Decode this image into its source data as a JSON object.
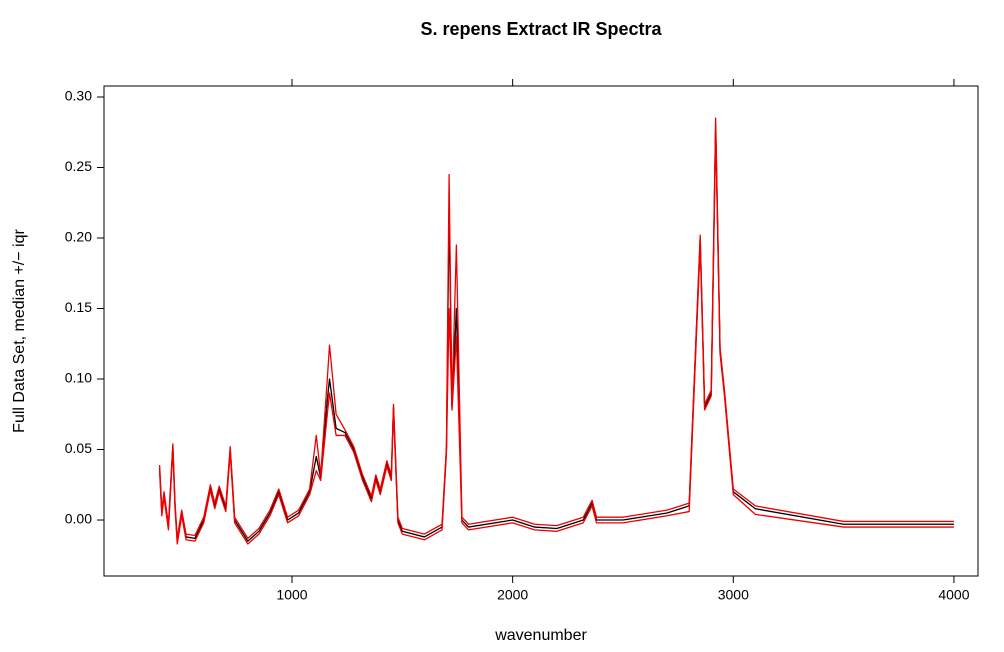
{
  "chart_data": {
    "type": "line",
    "title": "S. repens Extract IR Spectra",
    "xlabel": "wavenumber",
    "ylabel": "Full Data Set, median +/− iqr",
    "xlim": [
      148,
      4109
    ],
    "ylim": [
      -0.0397,
      0.3078
    ],
    "xticks": [
      1000,
      2000,
      3000,
      4000
    ],
    "yticks": [
      {
        "value": 0,
        "label": "0.00"
      },
      {
        "value": 0.05,
        "label": "0.05"
      },
      {
        "value": 0.1,
        "label": "0.10"
      },
      0.15,
      {
        "value": 0.2,
        "label": "0.20"
      },
      0.25,
      {
        "value": 0.3,
        "label": "0.30"
      }
    ],
    "x": [
      400,
      410,
      420,
      440,
      460,
      470,
      480,
      500,
      520,
      560,
      600,
      630,
      650,
      670,
      700,
      720,
      740,
      800,
      850,
      900,
      940,
      980,
      1030,
      1080,
      1110,
      1130,
      1160,
      1170,
      1200,
      1240,
      1280,
      1320,
      1360,
      1380,
      1400,
      1430,
      1450,
      1460,
      1480,
      1500,
      1600,
      1680,
      1700,
      1712,
      1725,
      1745,
      1770,
      1800,
      2000,
      2100,
      2200,
      2320,
      2360,
      2380,
      2500,
      2700,
      2800,
      2850,
      2870,
      2900,
      2920,
      2940,
      2960,
      3000,
      3100,
      3500,
      4000
    ],
    "series": [
      {
        "color": "#000000",
        "values": [
          0.037,
          0.005,
          0.018,
          -0.005,
          0.052,
          0.01,
          -0.015,
          0.005,
          -0.012,
          -0.013,
          0.0,
          0.023,
          0.01,
          0.022,
          0.008,
          0.05,
          0.0,
          -0.015,
          -0.008,
          0.005,
          0.02,
          0.0,
          0.005,
          0.02,
          0.045,
          0.03,
          0.085,
          0.1,
          0.065,
          0.062,
          0.05,
          0.03,
          0.015,
          0.03,
          0.02,
          0.04,
          0.03,
          0.08,
          0.0,
          -0.008,
          -0.012,
          -0.005,
          0.05,
          0.22,
          0.08,
          0.15,
          0.0,
          -0.005,
          0.0,
          -0.005,
          -0.006,
          0.0,
          0.012,
          0.0,
          0.0,
          0.005,
          0.01,
          0.2,
          0.08,
          0.09,
          0.28,
          0.12,
          0.09,
          0.02,
          0.008,
          -0.003,
          -0.003
        ]
      },
      {
        "color": "#ee0000",
        "values": [
          0.039,
          0.007,
          0.02,
          -0.003,
          0.054,
          0.012,
          -0.013,
          0.007,
          -0.01,
          -0.011,
          0.002,
          0.025,
          0.012,
          0.024,
          0.01,
          0.052,
          0.002,
          -0.013,
          -0.006,
          0.007,
          0.022,
          0.002,
          0.007,
          0.022,
          0.06,
          0.032,
          0.1,
          0.124,
          0.075,
          0.064,
          0.052,
          0.032,
          0.017,
          0.032,
          0.022,
          0.042,
          0.032,
          0.082,
          0.002,
          -0.006,
          -0.01,
          -0.003,
          0.052,
          0.245,
          0.082,
          0.195,
          0.002,
          -0.003,
          0.002,
          -0.003,
          -0.004,
          0.002,
          0.014,
          0.002,
          0.002,
          0.007,
          0.012,
          0.202,
          0.082,
          0.092,
          0.285,
          0.122,
          0.092,
          0.022,
          0.01,
          -0.001,
          -0.001
        ]
      },
      {
        "color": "#ee0000",
        "values": [
          0.035,
          0.003,
          0.016,
          -0.007,
          0.05,
          0.008,
          -0.017,
          0.003,
          -0.014,
          -0.015,
          -0.002,
          0.021,
          0.008,
          0.02,
          0.006,
          0.048,
          -0.002,
          -0.017,
          -0.01,
          0.003,
          0.018,
          -0.002,
          0.003,
          0.018,
          0.035,
          0.028,
          0.075,
          0.09,
          0.06,
          0.06,
          0.048,
          0.028,
          0.013,
          0.028,
          0.018,
          0.038,
          0.028,
          0.078,
          -0.002,
          -0.01,
          -0.014,
          -0.007,
          0.048,
          0.15,
          0.078,
          0.13,
          -0.002,
          -0.007,
          -0.002,
          -0.007,
          -0.008,
          -0.002,
          0.01,
          -0.002,
          -0.002,
          0.003,
          0.006,
          0.195,
          0.078,
          0.088,
          0.275,
          0.118,
          0.088,
          0.018,
          0.004,
          -0.005,
          -0.005
        ]
      }
    ]
  }
}
